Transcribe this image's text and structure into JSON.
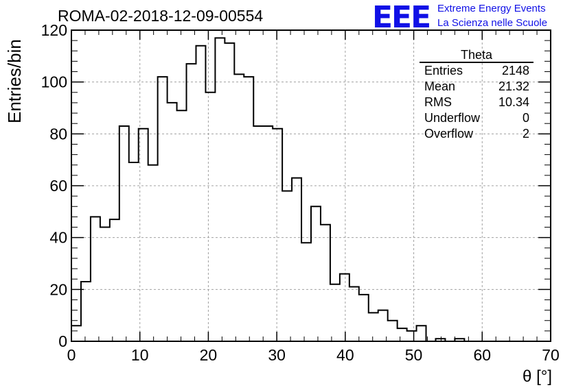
{
  "header": {
    "run_title": "ROMA-02-2018-12-09-00554",
    "logo_mark": "EEE",
    "logo_line1": "Extreme Energy Events",
    "logo_line2": "La Scienza nelle Scuole"
  },
  "stats_box": {
    "title": "Theta",
    "rows": [
      {
        "label": "Entries",
        "value": "2148"
      },
      {
        "label": "Mean",
        "value": "21.32"
      },
      {
        "label": "RMS",
        "value": "10.34"
      },
      {
        "label": "Underflow",
        "value": "0"
      },
      {
        "label": "Overflow",
        "value": "2"
      }
    ]
  },
  "chart_data": {
    "type": "histogram",
    "title": "ROMA-02-2018-12-09-00554",
    "xlabel": "θ [°]",
    "ylabel": "Entries/bin",
    "xlim": [
      0,
      70
    ],
    "ylim": [
      0,
      120
    ],
    "bin_width": 1.4,
    "x_ticks": [
      0,
      10,
      20,
      30,
      40,
      50,
      60,
      70
    ],
    "y_ticks": [
      0,
      20,
      40,
      60,
      80,
      100,
      120
    ],
    "grid": true,
    "series": [
      {
        "bin_edges_start": 0,
        "values": [
          6,
          23,
          48,
          44,
          47,
          83,
          69,
          82,
          68,
          102,
          92,
          89,
          107,
          114,
          96,
          117,
          115,
          103,
          102,
          83,
          83,
          82,
          58,
          63,
          38,
          52,
          45,
          22,
          26,
          21,
          18,
          11,
          12,
          8,
          5,
          4,
          6,
          0,
          1,
          0,
          1,
          0,
          0,
          0,
          0,
          0,
          0,
          0,
          0,
          0
        ]
      }
    ]
  }
}
